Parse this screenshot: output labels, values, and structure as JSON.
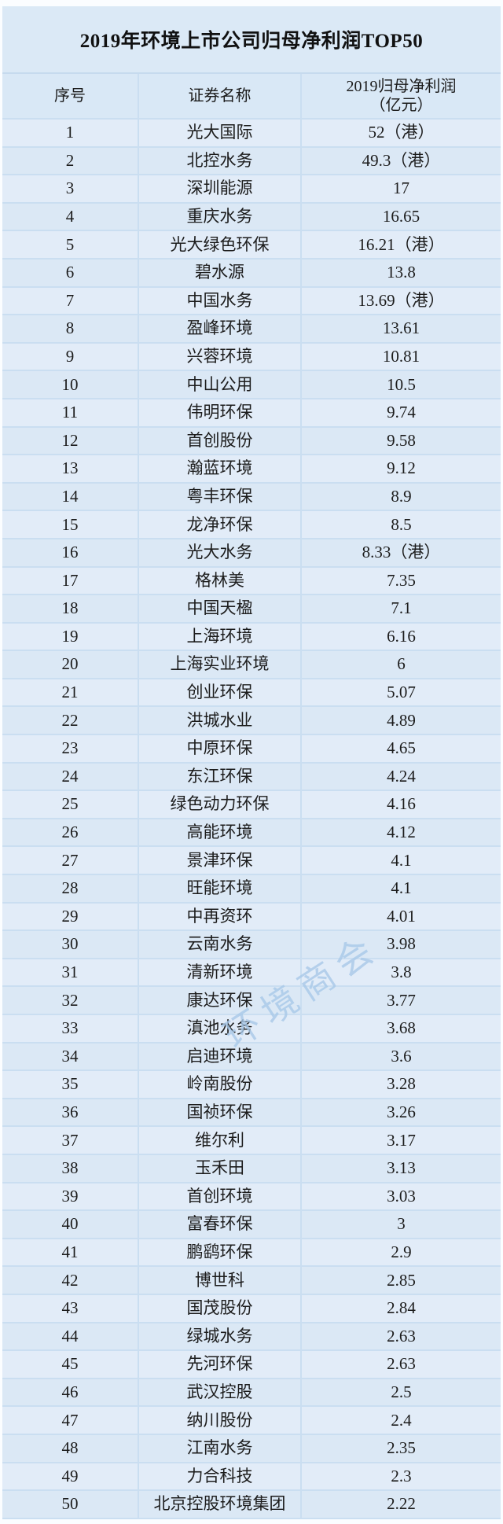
{
  "page": {
    "title": "2019年环境上市公司归母净利润TOP50"
  },
  "watermark": {
    "text": "环境商会"
  },
  "colors": {
    "row_bg": "#dbe8f5",
    "row_bg_alt": "#e2ecf8",
    "header_bg": "#d9e8f6",
    "border": "#cadef1",
    "watermark_blue": "#a9c9e9",
    "text": "#1c1c1c"
  },
  "table": {
    "columns": {
      "rank": "序号",
      "name": "证券名称",
      "value_line1": "2019归母净利润",
      "value_line2": "（亿元）"
    },
    "rows": [
      {
        "rank": "1",
        "name": "光大国际",
        "value": "52（港）"
      },
      {
        "rank": "2",
        "name": "北控水务",
        "value": "49.3（港）"
      },
      {
        "rank": "3",
        "name": "深圳能源",
        "value": "17"
      },
      {
        "rank": "4",
        "name": "重庆水务",
        "value": "16.65"
      },
      {
        "rank": "5",
        "name": "光大绿色环保",
        "value": "16.21（港）"
      },
      {
        "rank": "6",
        "name": "碧水源",
        "value": "13.8"
      },
      {
        "rank": "7",
        "name": "中国水务",
        "value": "13.69（港）"
      },
      {
        "rank": "8",
        "name": "盈峰环境",
        "value": "13.61"
      },
      {
        "rank": "9",
        "name": "兴蓉环境",
        "value": "10.81"
      },
      {
        "rank": "10",
        "name": "中山公用",
        "value": "10.5"
      },
      {
        "rank": "11",
        "name": "伟明环保",
        "value": "9.74"
      },
      {
        "rank": "12",
        "name": "首创股份",
        "value": "9.58"
      },
      {
        "rank": "13",
        "name": "瀚蓝环境",
        "value": "9.12"
      },
      {
        "rank": "14",
        "name": "粤丰环保",
        "value": "8.9"
      },
      {
        "rank": "15",
        "name": "龙净环保",
        "value": "8.5"
      },
      {
        "rank": "16",
        "name": "光大水务",
        "value": "8.33（港）"
      },
      {
        "rank": "17",
        "name": "格林美",
        "value": "7.35"
      },
      {
        "rank": "18",
        "name": "中国天楹",
        "value": "7.1"
      },
      {
        "rank": "19",
        "name": "上海环境",
        "value": "6.16"
      },
      {
        "rank": "20",
        "name": "上海实业环境",
        "value": "6"
      },
      {
        "rank": "21",
        "name": "创业环保",
        "value": "5.07"
      },
      {
        "rank": "22",
        "name": "洪城水业",
        "value": "4.89"
      },
      {
        "rank": "23",
        "name": "中原环保",
        "value": "4.65"
      },
      {
        "rank": "24",
        "name": "东江环保",
        "value": "4.24"
      },
      {
        "rank": "25",
        "name": "绿色动力环保",
        "value": "4.16"
      },
      {
        "rank": "26",
        "name": "高能环境",
        "value": "4.12"
      },
      {
        "rank": "27",
        "name": "景津环保",
        "value": "4.1"
      },
      {
        "rank": "28",
        "name": "旺能环境",
        "value": "4.1"
      },
      {
        "rank": "29",
        "name": "中再资环",
        "value": "4.01"
      },
      {
        "rank": "30",
        "name": "云南水务",
        "value": "3.98"
      },
      {
        "rank": "31",
        "name": "清新环境",
        "value": "3.8"
      },
      {
        "rank": "32",
        "name": "康达环保",
        "value": "3.77"
      },
      {
        "rank": "33",
        "name": "滇池水务",
        "value": "3.68"
      },
      {
        "rank": "34",
        "name": "启迪环境",
        "value": "3.6"
      },
      {
        "rank": "35",
        "name": "岭南股份",
        "value": "3.28"
      },
      {
        "rank": "36",
        "name": "国祯环保",
        "value": "3.26"
      },
      {
        "rank": "37",
        "name": "维尔利",
        "value": "3.17"
      },
      {
        "rank": "38",
        "name": "玉禾田",
        "value": "3.13"
      },
      {
        "rank": "39",
        "name": "首创环境",
        "value": "3.03"
      },
      {
        "rank": "40",
        "name": "富春环保",
        "value": "3"
      },
      {
        "rank": "41",
        "name": "鹏鹞环保",
        "value": "2.9"
      },
      {
        "rank": "42",
        "name": "博世科",
        "value": "2.85"
      },
      {
        "rank": "43",
        "name": "国茂股份",
        "value": "2.84"
      },
      {
        "rank": "44",
        "name": "绿城水务",
        "value": "2.63"
      },
      {
        "rank": "45",
        "name": "先河环保",
        "value": "2.63"
      },
      {
        "rank": "46",
        "name": "武汉控股",
        "value": "2.5"
      },
      {
        "rank": "47",
        "name": "纳川股份",
        "value": "2.4"
      },
      {
        "rank": "48",
        "name": "江南水务",
        "value": "2.35"
      },
      {
        "rank": "49",
        "name": "力合科技",
        "value": "2.3"
      },
      {
        "rank": "50",
        "name": "北京控股环境集团",
        "value": "2.22"
      }
    ]
  }
}
